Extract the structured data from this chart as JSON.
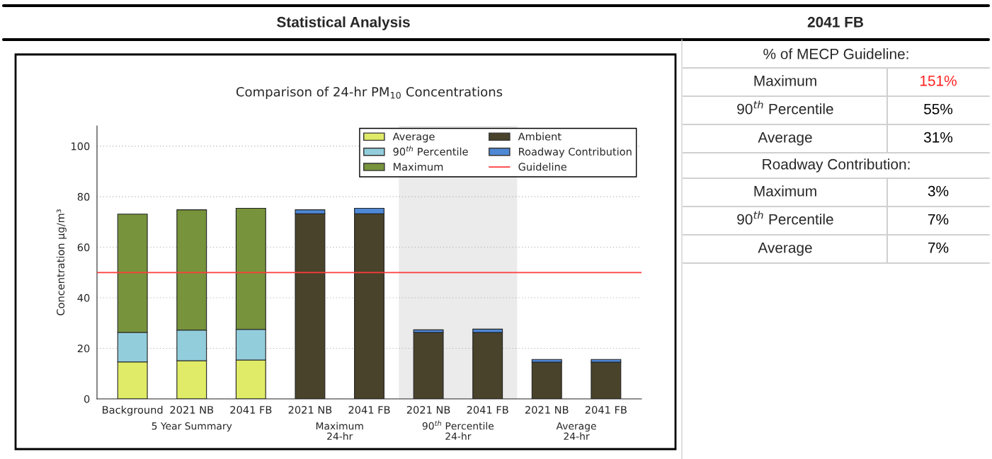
{
  "chart_data": [
    {
      "type": "bar",
      "title": "Statistical Analysis",
      "subtitle": "Comparison of 24-hr PM$_{10}$ Concentrations",
      "ylabel": "Concentration µg/m³",
      "categories": [
        "Background",
        "2021 NB",
        "2041 FB",
        "2021 NB",
        "2041 FB",
        "2021 NB",
        "2041 FB",
        "2021 NB",
        "2041 FB"
      ],
      "stacked": true,
      "series": [
        {
          "name": "Average",
          "color": "#e0eb67",
          "values": [
            14.6,
            15.1,
            15.4,
            null,
            null,
            null,
            null,
            null,
            null
          ]
        },
        {
          "name": "90$^{th}$ Percentile",
          "color": "#92cddc",
          "values": [
            11.7,
            12.1,
            12.1,
            null,
            null,
            null,
            null,
            null,
            null
          ]
        },
        {
          "name": "Maximum",
          "color": "#77933c",
          "values": [
            46.8,
            47.6,
            47.9,
            null,
            null,
            null,
            null,
            null,
            null
          ]
        },
        {
          "name": "Ambient",
          "color": "#4a432b",
          "values": [
            null,
            null,
            null,
            73.2,
            73.2,
            26.3,
            26.3,
            14.5,
            14.5
          ]
        },
        {
          "name": "Roadway Contribution",
          "color": "#4f88d5",
          "values": [
            null,
            null,
            null,
            1.6,
            2.2,
            1.0,
            1.3,
            1.1,
            1.1
          ]
        }
      ],
      "ylim": [
        0,
        108
      ],
      "yticks": [
        0,
        20,
        40,
        60,
        80,
        100
      ],
      "grid": "y",
      "legend": "top right",
      "ref_lines": [
        {
          "axis": "y",
          "value": 50,
          "label": "Guideline",
          "color": "#ff3b3b"
        }
      ],
      "annotations": [
        "5 Year Summary",
        "Maximum\n24-hr",
        "90$^{th}$ Percentile\n24-hr",
        "Average\n24-hr"
      ]
    },
    {
      "type": "other",
      "title": "2041 FB",
      "annotations": [
        "% of MECP Guideline:",
        "Roadway Contribution:"
      ],
      "categories": [
        "Maximum",
        "90$^{th}$ Percentile",
        "Average",
        "Maximum",
        "90$^{th}$ Percentile",
        "Average"
      ],
      "value_labels": [
        "151%",
        "55%",
        "31%",
        "3%",
        "7%",
        "7%"
      ],
      "colors": [
        "#ff2020",
        "#000000",
        "#000000",
        "#000000",
        "#000000",
        "#000000"
      ]
    }
  ]
}
